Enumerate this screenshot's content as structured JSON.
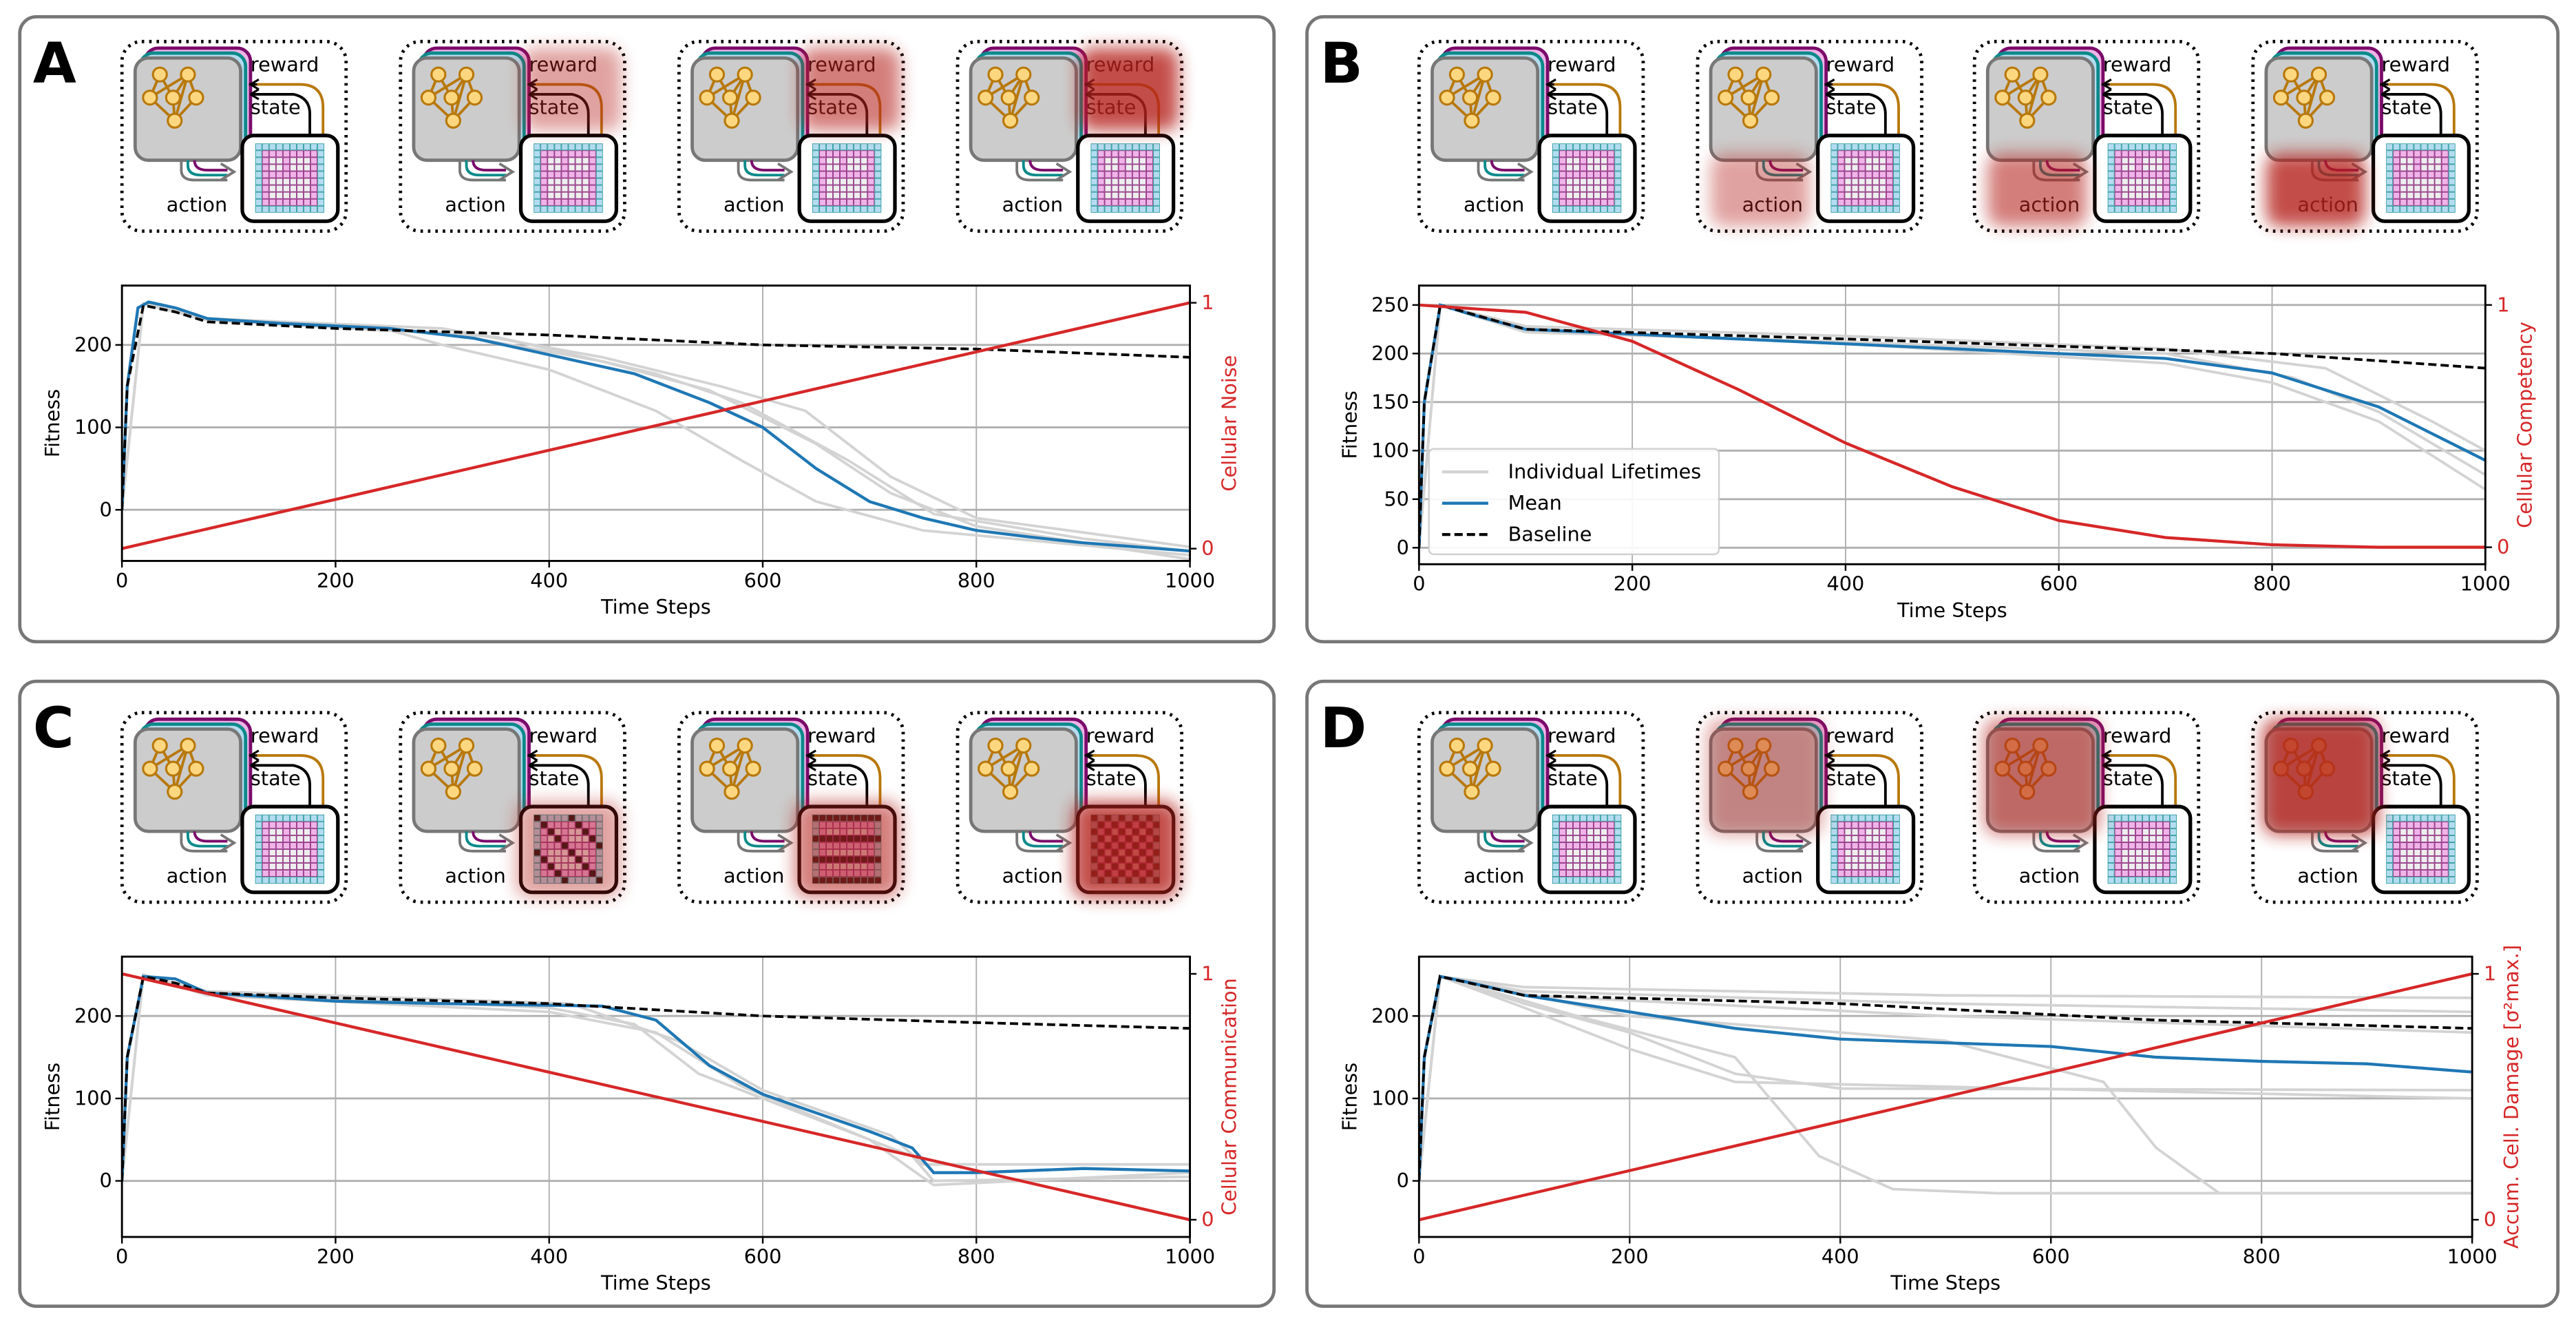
{
  "schematic": {
    "reward": "reward",
    "state": "state",
    "action": "action"
  },
  "colors": {
    "mean": "#1f77b4",
    "individual": "#d3d3d3",
    "baseline": "#000000",
    "control": "#d62728",
    "grid_pink": "#f0b4e8",
    "grid_blue": "#b4dcf0",
    "net_node": "#fcd77f",
    "net_edge": "#b8780a"
  },
  "panels": [
    {
      "letter": "A",
      "perturbation_target": "reward-state",
      "perturbation_levels": [
        0,
        0.3,
        0.6,
        1.0
      ],
      "chart_data": {
        "type": "line",
        "xlabel": "Time Steps",
        "ylabel": "Fitness",
        "y2label": "Cellular Noise",
        "xlim": [
          0,
          1000
        ],
        "ylim": [
          -62,
          272
        ],
        "y2lim": [
          -0.05,
          1.07
        ],
        "xticks": [
          0,
          200,
          400,
          600,
          800,
          1000
        ],
        "yticks": [
          0,
          100,
          200
        ],
        "y2ticks": [
          0,
          1
        ],
        "grid": true,
        "legend": null,
        "mean": [
          [
            0,
            0
          ],
          [
            5,
            150
          ],
          [
            15,
            245
          ],
          [
            25,
            252
          ],
          [
            50,
            245
          ],
          [
            80,
            232
          ],
          [
            150,
            226
          ],
          [
            250,
            220
          ],
          [
            330,
            208
          ],
          [
            400,
            188
          ],
          [
            480,
            165
          ],
          [
            550,
            130
          ],
          [
            600,
            100
          ],
          [
            650,
            50
          ],
          [
            700,
            10
          ],
          [
            750,
            -10
          ],
          [
            800,
            -25
          ],
          [
            850,
            -33
          ],
          [
            900,
            -40
          ],
          [
            1000,
            -50
          ]
        ],
        "baseline": [
          [
            0,
            0
          ],
          [
            5,
            150
          ],
          [
            20,
            248
          ],
          [
            50,
            240
          ],
          [
            80,
            228
          ],
          [
            200,
            220
          ],
          [
            400,
            212
          ],
          [
            600,
            200
          ],
          [
            800,
            195
          ],
          [
            1000,
            185
          ]
        ],
        "control": [
          [
            0,
            0
          ],
          [
            1000,
            1
          ]
        ],
        "individual_lifetimes": [
          [
            [
              0,
              0
            ],
            [
              20,
              250
            ],
            [
              80,
              230
            ],
            [
              250,
              218
            ],
            [
              300,
              200
            ],
            [
              400,
              170
            ],
            [
              500,
              120
            ],
            [
              580,
              60
            ],
            [
              650,
              10
            ],
            [
              750,
              -25
            ],
            [
              1000,
              -55
            ]
          ],
          [
            [
              0,
              0
            ],
            [
              20,
              250
            ],
            [
              80,
              232
            ],
            [
              300,
              215
            ],
            [
              450,
              180
            ],
            [
              550,
              145
            ],
            [
              650,
              80
            ],
            [
              720,
              20
            ],
            [
              800,
              -20
            ],
            [
              1000,
              -60
            ]
          ],
          [
            [
              0,
              0
            ],
            [
              20,
              250
            ],
            [
              80,
              232
            ],
            [
              300,
              220
            ],
            [
              450,
              185
            ],
            [
              560,
              150
            ],
            [
              640,
              120
            ],
            [
              720,
              40
            ],
            [
              800,
              -10
            ],
            [
              1000,
              -45
            ]
          ],
          [
            [
              0,
              0
            ],
            [
              20,
              250
            ],
            [
              80,
              230
            ],
            [
              350,
              210
            ],
            [
              500,
              165
            ],
            [
              580,
              130
            ],
            [
              680,
              60
            ],
            [
              760,
              -5
            ],
            [
              900,
              -35
            ],
            [
              1000,
              -50
            ]
          ]
        ]
      }
    },
    {
      "letter": "B",
      "perturbation_target": "action",
      "perturbation_levels": [
        0,
        0.3,
        0.6,
        1.0
      ],
      "chart_data": {
        "type": "line",
        "xlabel": "Time Steps",
        "ylabel": "Fitness",
        "y2label": "Cellular Competency",
        "xlim": [
          0,
          1000
        ],
        "ylim": [
          -17,
          270
        ],
        "y2lim": [
          -0.07,
          1.08
        ],
        "xticks": [
          0,
          200,
          400,
          600,
          800,
          1000
        ],
        "yticks": [
          0,
          50,
          100,
          150,
          200,
          250
        ],
        "y2ticks": [
          0,
          1
        ],
        "grid": true,
        "legend": "lower-left",
        "legend_entries": [
          "Individual Lifetimes",
          "Mean",
          "Baseline"
        ],
        "mean": [
          [
            0,
            0
          ],
          [
            5,
            150
          ],
          [
            20,
            250
          ],
          [
            50,
            240
          ],
          [
            100,
            225
          ],
          [
            300,
            215
          ],
          [
            500,
            205
          ],
          [
            700,
            195
          ],
          [
            800,
            180
          ],
          [
            900,
            145
          ],
          [
            1000,
            90
          ]
        ],
        "baseline": [
          [
            0,
            0
          ],
          [
            5,
            150
          ],
          [
            20,
            250
          ],
          [
            100,
            225
          ],
          [
            400,
            215
          ],
          [
            800,
            200
          ],
          [
            1000,
            185
          ]
        ],
        "control": [
          [
            0,
            1
          ],
          [
            100,
            0.97
          ],
          [
            200,
            0.85
          ],
          [
            300,
            0.65
          ],
          [
            400,
            0.43
          ],
          [
            500,
            0.25
          ],
          [
            600,
            0.11
          ],
          [
            700,
            0.04
          ],
          [
            800,
            0.01
          ],
          [
            900,
            0
          ],
          [
            1000,
            0
          ]
        ],
        "individual_lifetimes": [
          [
            [
              0,
              0
            ],
            [
              20,
              250
            ],
            [
              100,
              222
            ],
            [
              400,
              212
            ],
            [
              700,
              200
            ],
            [
              820,
              175
            ],
            [
              900,
              140
            ],
            [
              1000,
              75
            ]
          ],
          [
            [
              0,
              0
            ],
            [
              20,
              250
            ],
            [
              100,
              228
            ],
            [
              400,
              218
            ],
            [
              700,
              205
            ],
            [
              850,
              185
            ],
            [
              950,
              130
            ],
            [
              1000,
              100
            ]
          ],
          [
            [
              0,
              0
            ],
            [
              20,
              250
            ],
            [
              100,
              224
            ],
            [
              400,
              210
            ],
            [
              700,
              190
            ],
            [
              800,
              170
            ],
            [
              900,
              130
            ],
            [
              1000,
              60
            ]
          ]
        ]
      }
    },
    {
      "letter": "C",
      "perturbation_target": "grid",
      "perturbation_levels": [
        0,
        0.3,
        0.6,
        1.0
      ],
      "chart_data": {
        "type": "line",
        "xlabel": "Time Steps",
        "ylabel": "Fitness",
        "y2label": "Cellular Communication",
        "xlim": [
          0,
          1000
        ],
        "ylim": [
          -68,
          272
        ],
        "y2lim": [
          -0.07,
          1.07
        ],
        "xticks": [
          0,
          200,
          400,
          600,
          800,
          1000
        ],
        "yticks": [
          0,
          100,
          200
        ],
        "y2ticks": [
          0,
          1
        ],
        "grid": true,
        "legend": null,
        "mean": [
          [
            0,
            0
          ],
          [
            5,
            150
          ],
          [
            20,
            248
          ],
          [
            50,
            245
          ],
          [
            80,
            228
          ],
          [
            200,
            218
          ],
          [
            300,
            215
          ],
          [
            450,
            212
          ],
          [
            500,
            195
          ],
          [
            550,
            140
          ],
          [
            600,
            105
          ],
          [
            700,
            60
          ],
          [
            740,
            40
          ],
          [
            760,
            10
          ],
          [
            800,
            10
          ],
          [
            900,
            15
          ],
          [
            1000,
            12
          ]
        ],
        "baseline": [
          [
            0,
            0
          ],
          [
            5,
            150
          ],
          [
            20,
            248
          ],
          [
            50,
            240
          ],
          [
            80,
            228
          ],
          [
            200,
            222
          ],
          [
            400,
            215
          ],
          [
            600,
            200
          ],
          [
            800,
            192
          ],
          [
            1000,
            185
          ]
        ],
        "control": [
          [
            0,
            1
          ],
          [
            1000,
            0
          ]
        ],
        "individual_lifetimes": [
          [
            [
              0,
              0
            ],
            [
              20,
              250
            ],
            [
              80,
              228
            ],
            [
              400,
              210
            ],
            [
              480,
              190
            ],
            [
              540,
              130
            ],
            [
              620,
              90
            ],
            [
              740,
              30
            ],
            [
              760,
              0
            ],
            [
              1000,
              5
            ]
          ],
          [
            [
              0,
              0
            ],
            [
              20,
              250
            ],
            [
              80,
              230
            ],
            [
              420,
              215
            ],
            [
              520,
              170
            ],
            [
              600,
              110
            ],
            [
              720,
              55
            ],
            [
              750,
              20
            ],
            [
              1000,
              20
            ]
          ],
          [
            [
              0,
              0
            ],
            [
              20,
              250
            ],
            [
              80,
              225
            ],
            [
              400,
              205
            ],
            [
              500,
              180
            ],
            [
              580,
              115
            ],
            [
              700,
              50
            ],
            [
              760,
              -5
            ],
            [
              1000,
              10
            ]
          ]
        ]
      }
    },
    {
      "letter": "D",
      "perturbation_target": "network",
      "perturbation_levels": [
        0,
        0.3,
        0.6,
        1.0
      ],
      "chart_data": {
        "type": "line",
        "xlabel": "Time Steps",
        "ylabel": "Fitness",
        "y2label": "Accum. Cell. Damage [σ²max.]",
        "xlim": [
          0,
          1000
        ],
        "ylim": [
          -68,
          272
        ],
        "y2lim": [
          -0.07,
          1.07
        ],
        "xticks": [
          0,
          200,
          400,
          600,
          800,
          1000
        ],
        "yticks": [
          0,
          100,
          200
        ],
        "y2ticks": [
          0,
          1
        ],
        "grid": true,
        "legend": null,
        "mean": [
          [
            0,
            0
          ],
          [
            5,
            150
          ],
          [
            20,
            248
          ],
          [
            50,
            240
          ],
          [
            100,
            225
          ],
          [
            200,
            205
          ],
          [
            300,
            185
          ],
          [
            400,
            172
          ],
          [
            600,
            163
          ],
          [
            700,
            150
          ],
          [
            800,
            145
          ],
          [
            900,
            142
          ],
          [
            1000,
            132
          ]
        ],
        "baseline": [
          [
            0,
            0
          ],
          [
            5,
            150
          ],
          [
            20,
            248
          ],
          [
            100,
            225
          ],
          [
            400,
            215
          ],
          [
            700,
            195
          ],
          [
            1000,
            185
          ]
        ],
        "control": [
          [
            0,
            0
          ],
          [
            1000,
            1
          ]
        ],
        "individual_lifetimes": [
          [
            [
              0,
              0
            ],
            [
              20,
              248
            ],
            [
              100,
              235
            ],
            [
              500,
              225
            ],
            [
              1000,
              222
            ]
          ],
          [
            [
              0,
              0
            ],
            [
              20,
              248
            ],
            [
              100,
              230
            ],
            [
              500,
              215
            ],
            [
              1000,
              205
            ]
          ],
          [
            [
              0,
              0
            ],
            [
              20,
              248
            ],
            [
              100,
              225
            ],
            [
              500,
              200
            ],
            [
              1000,
              180
            ]
          ],
          [
            [
              0,
              0
            ],
            [
              20,
              248
            ],
            [
              100,
              215
            ],
            [
              200,
              180
            ],
            [
              300,
              130
            ],
            [
              400,
              112
            ],
            [
              1000,
              110
            ]
          ],
          [
            [
              0,
              0
            ],
            [
              20,
              248
            ],
            [
              100,
              210
            ],
            [
              200,
              160
            ],
            [
              300,
              120
            ],
            [
              1000,
              100
            ]
          ],
          [
            [
              0,
              0
            ],
            [
              20,
              248
            ],
            [
              150,
              200
            ],
            [
              300,
              150
            ],
            [
              380,
              30
            ],
            [
              450,
              -10
            ],
            [
              550,
              -15
            ],
            [
              1000,
              -15
            ]
          ],
          [
            [
              0,
              0
            ],
            [
              20,
              248
            ],
            [
              200,
              200
            ],
            [
              500,
              170
            ],
            [
              650,
              120
            ],
            [
              700,
              40
            ],
            [
              760,
              -15
            ],
            [
              1000,
              -15
            ]
          ]
        ]
      }
    }
  ]
}
